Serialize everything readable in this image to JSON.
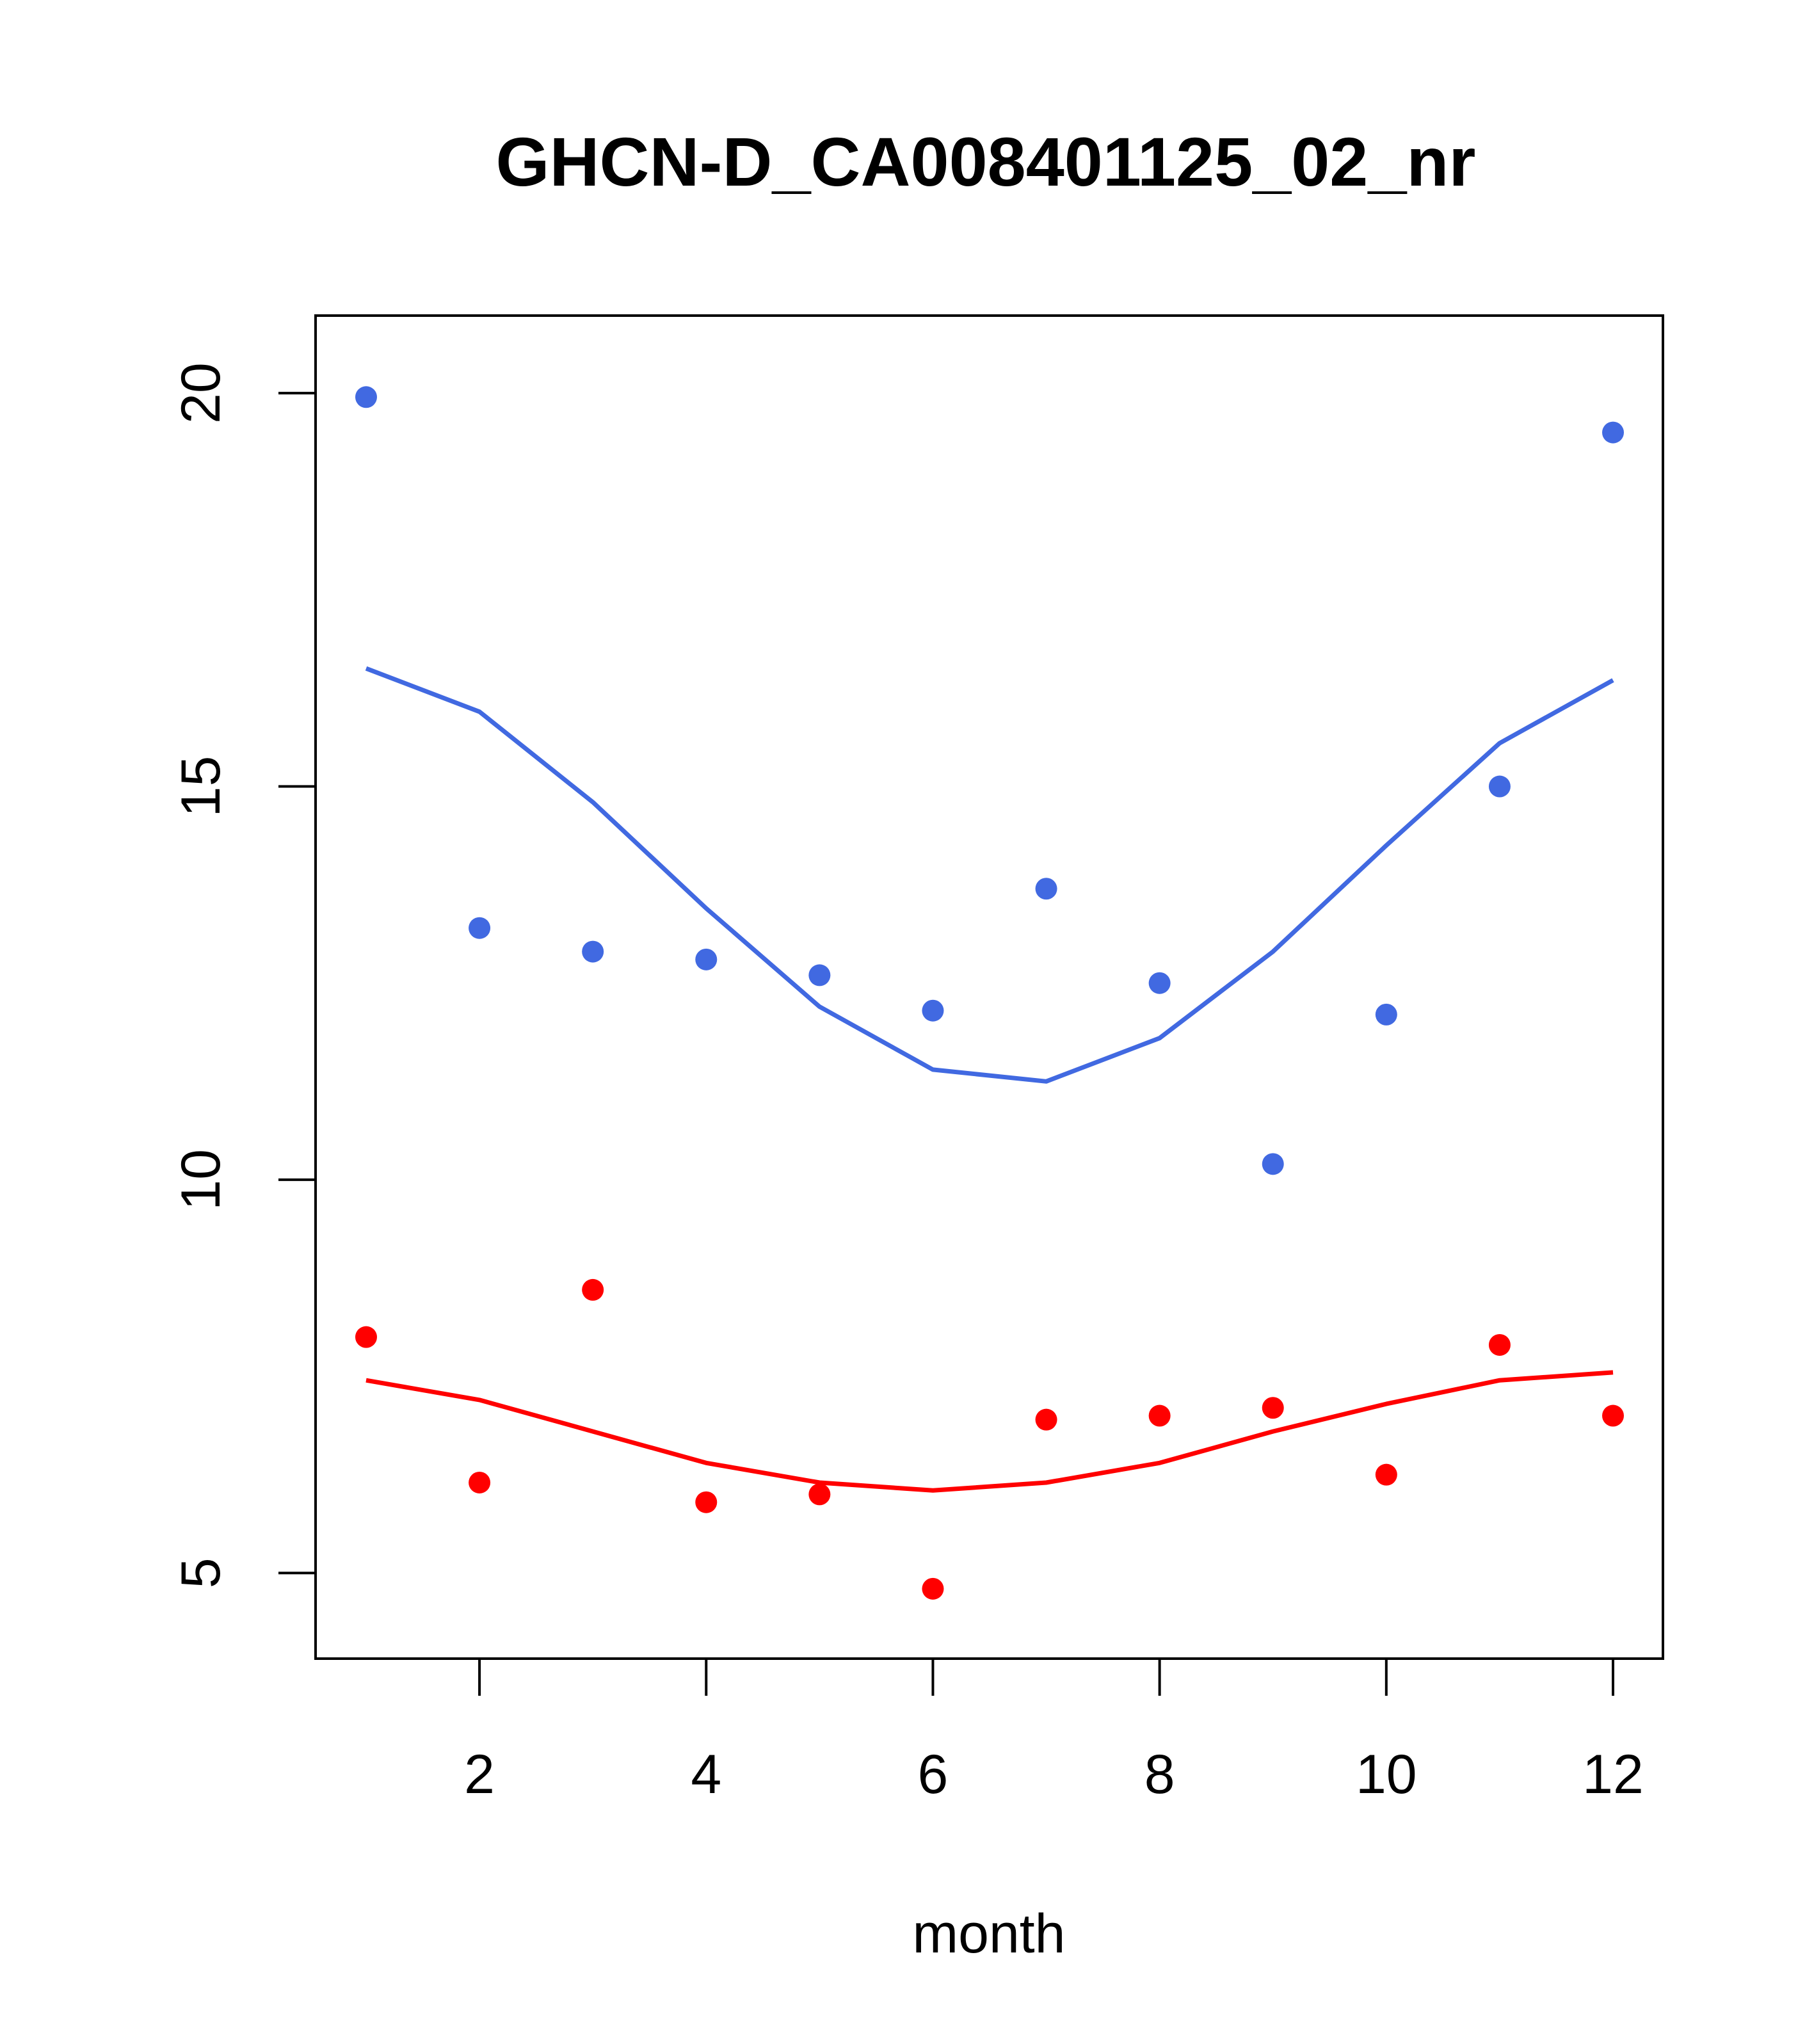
{
  "chart_data": {
    "type": "scatter",
    "title": "GHCN-D_CA008401125_02_nr",
    "xlabel": "month",
    "ylabel": "",
    "xlim": [
      1,
      12
    ],
    "ylim": [
      4.2,
      20.6
    ],
    "x_ticks": [
      2,
      4,
      6,
      8,
      10,
      12
    ],
    "x_tick_labels": [
      "2",
      "4",
      "6",
      "8",
      "10",
      "12"
    ],
    "y_ticks": [
      5,
      10,
      15,
      20
    ],
    "y_tick_labels": [
      "5",
      "10",
      "15",
      "20"
    ],
    "grid": false,
    "legend": "none",
    "series": [
      {
        "color": "#4169e1",
        "points_x": [
          1,
          2,
          3,
          4,
          5,
          6,
          7,
          8,
          9,
          10,
          11,
          12
        ],
        "points_y": [
          19.95,
          13.2,
          12.9,
          12.8,
          12.6,
          12.15,
          13.7,
          12.5,
          10.2,
          12.1,
          15.0,
          19.5
        ],
        "line_x": [
          1,
          2,
          3,
          4,
          5,
          6,
          7,
          8,
          9,
          10,
          11,
          12
        ],
        "line_y": [
          16.5,
          15.95,
          14.8,
          13.45,
          12.2,
          11.4,
          11.25,
          11.8,
          12.9,
          14.25,
          15.55,
          16.35
        ]
      },
      {
        "color": "#ff0000",
        "points_x": [
          1,
          2,
          3,
          4,
          5,
          6,
          7,
          8,
          9,
          10,
          11,
          12
        ],
        "points_y": [
          8.0,
          6.15,
          8.6,
          5.9,
          6.0,
          4.8,
          6.95,
          7.0,
          7.1,
          6.25,
          7.9,
          7.0
        ],
        "line_x": [
          1,
          2,
          3,
          4,
          5,
          6,
          7,
          8,
          9,
          10,
          11,
          12
        ],
        "line_y": [
          7.45,
          7.2,
          6.8,
          6.4,
          6.15,
          6.05,
          6.15,
          6.4,
          6.8,
          7.15,
          7.45,
          7.55
        ]
      }
    ]
  }
}
